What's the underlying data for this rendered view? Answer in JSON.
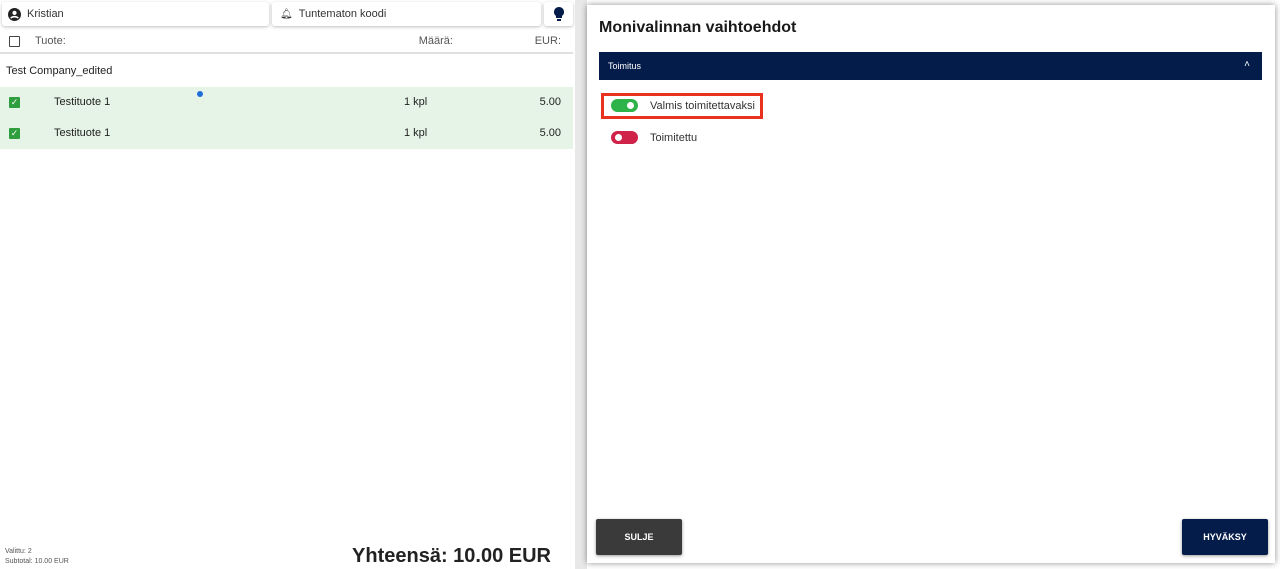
{
  "topbar": {
    "user": "Kristian",
    "notification": "Tuntematon koodi"
  },
  "table": {
    "headers": {
      "product": "Tuote:",
      "quantity": "Määrä:",
      "eur": "EUR:"
    },
    "group": "Test Company_edited",
    "rows": [
      {
        "name": "Testituote 1",
        "qty": "1 kpl",
        "price": "5.00",
        "checked": true
      },
      {
        "name": "Testituote 1",
        "qty": "1 kpl",
        "price": "5.00",
        "checked": true
      }
    ]
  },
  "footer": {
    "selected": "Valittu: 2",
    "subtotal": "Subtotal: 10.00 EUR",
    "total": "Yhteensä: 10.00 EUR"
  },
  "modal": {
    "title": "Monivalinnan vaihtoehdot",
    "section": "Toimitus",
    "options": [
      {
        "label": "Valmis toimitettavaksi",
        "on": true,
        "color": "#2db34a"
      },
      {
        "label": "Toimitettu",
        "on": false,
        "color": "#d0234a"
      }
    ],
    "close": "SULJE",
    "accept": "HYVÄKSY"
  },
  "colors": {
    "navy": "#041c4a",
    "dark": "#3a3a3a",
    "highlight": "#e8321e",
    "rowbg": "#e6f4e7"
  }
}
